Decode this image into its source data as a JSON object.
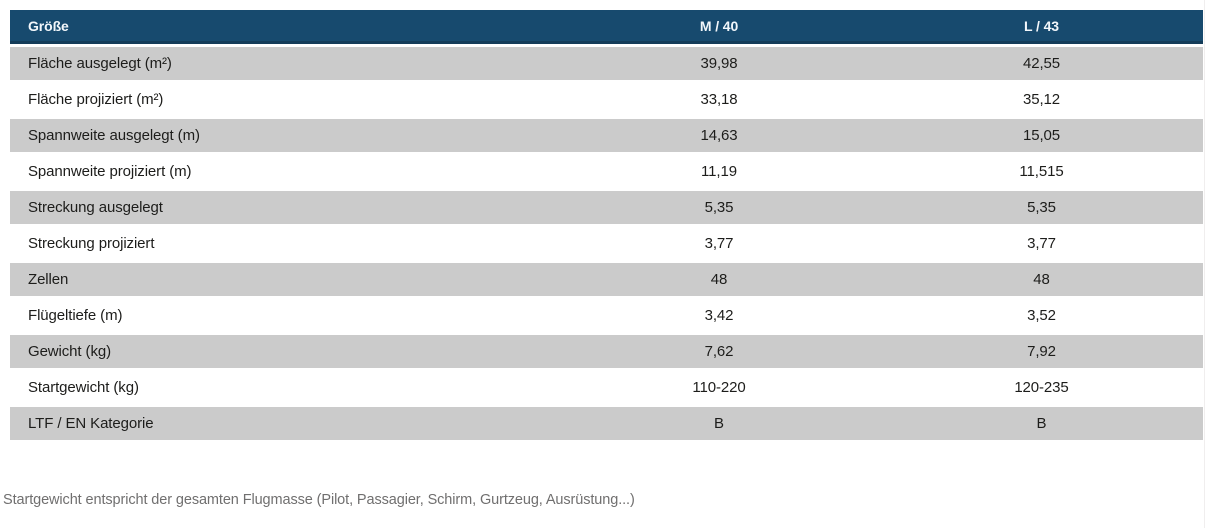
{
  "table": {
    "columns": [
      "Größe",
      "M / 40",
      "L / 43"
    ],
    "rows": [
      [
        "Fläche ausgelegt (m²)",
        "39,98",
        "42,55"
      ],
      [
        "Fläche projiziert (m²)",
        "33,18",
        "35,12"
      ],
      [
        "Spannweite ausgelegt (m)",
        "14,63",
        "15,05"
      ],
      [
        "Spannweite projiziert (m)",
        "11,19",
        "11,515"
      ],
      [
        "Streckung ausgelegt",
        "5,35",
        "5,35"
      ],
      [
        "Streckung projiziert",
        "3,77",
        "3,77"
      ],
      [
        "Zellen",
        "48",
        "48"
      ],
      [
        "Flügeltiefe (m)",
        "3,42",
        "3,52"
      ],
      [
        "Gewicht (kg)",
        "7,62",
        "7,92"
      ],
      [
        "Startgewicht (kg)",
        "110-220",
        "120-235"
      ],
      [
        "LTF / EN Kategorie",
        "B",
        "B"
      ]
    ]
  },
  "footnote": "Startgewicht entspricht der gesamten Flugmasse (Pilot, Passagier, Schirm, Gurtzeug, Ausrüstung...)",
  "colors": {
    "header_background": "#174A6E",
    "header_border_bottom": "#143C59",
    "header_text": "#F2F7FB",
    "row_alt_background": "#CBCBCB",
    "row_background": "#FFFFFF",
    "body_text": "#1D1D1B",
    "footnote_text": "#706F6F"
  }
}
